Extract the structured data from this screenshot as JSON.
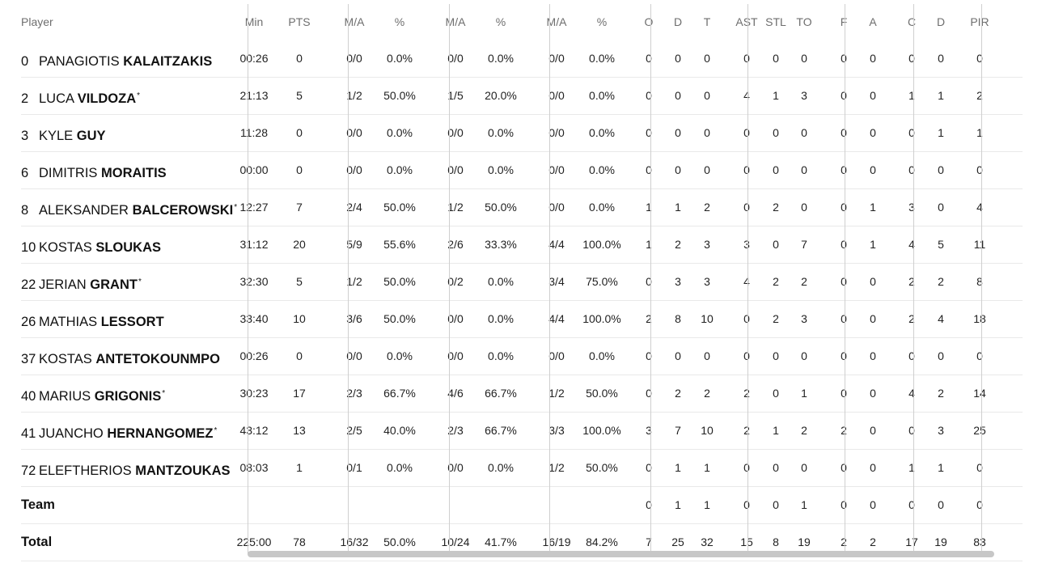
{
  "columns": {
    "player": "Player",
    "min": "Min",
    "pts": "PTS",
    "fg2_ma": "M/A",
    "fg2_pct": "%",
    "fg3_ma": "M/A",
    "fg3_pct": "%",
    "ft_ma": "M/A",
    "ft_pct": "%",
    "reb_o": "O",
    "reb_d": "D",
    "reb_t": "T",
    "ast": "AST",
    "stl": "STL",
    "to": "TO",
    "blk_f": "F",
    "blk_a": "A",
    "fouls_c": "C",
    "fouls_d": "D",
    "pir": "PIR"
  },
  "players": [
    {
      "num": "0",
      "first": "PANAGIOTIS",
      "last": "KALAITZAKIS",
      "star": "",
      "min": "00:26",
      "pts": "0",
      "fg2_ma": "0/0",
      "fg2_pct": "0.0%",
      "fg3_ma": "0/0",
      "fg3_pct": "0.0%",
      "ft_ma": "0/0",
      "ft_pct": "0.0%",
      "reb_o": "0",
      "reb_d": "0",
      "reb_t": "0",
      "ast": "0",
      "stl": "0",
      "to": "0",
      "blk_f": "0",
      "blk_a": "0",
      "fouls_c": "0",
      "fouls_d": "0",
      "pir": "0"
    },
    {
      "num": "2",
      "first": "LUCA",
      "last": "VILDOZA",
      "star": "*",
      "min": "21:13",
      "pts": "5",
      "fg2_ma": "1/2",
      "fg2_pct": "50.0%",
      "fg3_ma": "1/5",
      "fg3_pct": "20.0%",
      "ft_ma": "0/0",
      "ft_pct": "0.0%",
      "reb_o": "0",
      "reb_d": "0",
      "reb_t": "0",
      "ast": "4",
      "stl": "1",
      "to": "3",
      "blk_f": "0",
      "blk_a": "0",
      "fouls_c": "1",
      "fouls_d": "1",
      "pir": "2"
    },
    {
      "num": "3",
      "first": "KYLE",
      "last": "GUY",
      "star": "",
      "min": "11:28",
      "pts": "0",
      "fg2_ma": "0/0",
      "fg2_pct": "0.0%",
      "fg3_ma": "0/0",
      "fg3_pct": "0.0%",
      "ft_ma": "0/0",
      "ft_pct": "0.0%",
      "reb_o": "0",
      "reb_d": "0",
      "reb_t": "0",
      "ast": "0",
      "stl": "0",
      "to": "0",
      "blk_f": "0",
      "blk_a": "0",
      "fouls_c": "0",
      "fouls_d": "1",
      "pir": "1"
    },
    {
      "num": "6",
      "first": "DIMITRIS",
      "last": "MORAITIS",
      "star": "",
      "min": "00:00",
      "pts": "0",
      "fg2_ma": "0/0",
      "fg2_pct": "0.0%",
      "fg3_ma": "0/0",
      "fg3_pct": "0.0%",
      "ft_ma": "0/0",
      "ft_pct": "0.0%",
      "reb_o": "0",
      "reb_d": "0",
      "reb_t": "0",
      "ast": "0",
      "stl": "0",
      "to": "0",
      "blk_f": "0",
      "blk_a": "0",
      "fouls_c": "0",
      "fouls_d": "0",
      "pir": "0"
    },
    {
      "num": "8",
      "first": "ALEKSANDER",
      "last": "BALCEROWSKI",
      "star": "*",
      "min": "12:27",
      "pts": "7",
      "fg2_ma": "2/4",
      "fg2_pct": "50.0%",
      "fg3_ma": "1/2",
      "fg3_pct": "50.0%",
      "ft_ma": "0/0",
      "ft_pct": "0.0%",
      "reb_o": "1",
      "reb_d": "1",
      "reb_t": "2",
      "ast": "0",
      "stl": "2",
      "to": "0",
      "blk_f": "0",
      "blk_a": "1",
      "fouls_c": "3",
      "fouls_d": "0",
      "pir": "4"
    },
    {
      "num": "10",
      "first": "KOSTAS",
      "last": "SLOUKAS",
      "star": "",
      "min": "31:12",
      "pts": "20",
      "fg2_ma": "5/9",
      "fg2_pct": "55.6%",
      "fg3_ma": "2/6",
      "fg3_pct": "33.3%",
      "ft_ma": "4/4",
      "ft_pct": "100.0%",
      "reb_o": "1",
      "reb_d": "2",
      "reb_t": "3",
      "ast": "3",
      "stl": "0",
      "to": "7",
      "blk_f": "0",
      "blk_a": "1",
      "fouls_c": "4",
      "fouls_d": "5",
      "pir": "11"
    },
    {
      "num": "22",
      "first": "JERIAN",
      "last": "GRANT",
      "star": "*",
      "min": "32:30",
      "pts": "5",
      "fg2_ma": "1/2",
      "fg2_pct": "50.0%",
      "fg3_ma": "0/2",
      "fg3_pct": "0.0%",
      "ft_ma": "3/4",
      "ft_pct": "75.0%",
      "reb_o": "0",
      "reb_d": "3",
      "reb_t": "3",
      "ast": "4",
      "stl": "2",
      "to": "2",
      "blk_f": "0",
      "blk_a": "0",
      "fouls_c": "2",
      "fouls_d": "2",
      "pir": "8"
    },
    {
      "num": "26",
      "first": "MATHIAS",
      "last": "LESSORT",
      "star": "",
      "min": "33:40",
      "pts": "10",
      "fg2_ma": "3/6",
      "fg2_pct": "50.0%",
      "fg3_ma": "0/0",
      "fg3_pct": "0.0%",
      "ft_ma": "4/4",
      "ft_pct": "100.0%",
      "reb_o": "2",
      "reb_d": "8",
      "reb_t": "10",
      "ast": "0",
      "stl": "2",
      "to": "3",
      "blk_f": "0",
      "blk_a": "0",
      "fouls_c": "2",
      "fouls_d": "4",
      "pir": "18"
    },
    {
      "num": "37",
      "first": "KOSTAS",
      "last": "ANTETOKOUNMPO",
      "star": "",
      "min": "00:26",
      "pts": "0",
      "fg2_ma": "0/0",
      "fg2_pct": "0.0%",
      "fg3_ma": "0/0",
      "fg3_pct": "0.0%",
      "ft_ma": "0/0",
      "ft_pct": "0.0%",
      "reb_o": "0",
      "reb_d": "0",
      "reb_t": "0",
      "ast": "0",
      "stl": "0",
      "to": "0",
      "blk_f": "0",
      "blk_a": "0",
      "fouls_c": "0",
      "fouls_d": "0",
      "pir": "0"
    },
    {
      "num": "40",
      "first": "MARIUS",
      "last": "GRIGONIS",
      "star": "*",
      "min": "30:23",
      "pts": "17",
      "fg2_ma": "2/3",
      "fg2_pct": "66.7%",
      "fg3_ma": "4/6",
      "fg3_pct": "66.7%",
      "ft_ma": "1/2",
      "ft_pct": "50.0%",
      "reb_o": "0",
      "reb_d": "2",
      "reb_t": "2",
      "ast": "2",
      "stl": "0",
      "to": "1",
      "blk_f": "0",
      "blk_a": "0",
      "fouls_c": "4",
      "fouls_d": "2",
      "pir": "14"
    },
    {
      "num": "41",
      "first": "JUANCHO",
      "last": "HERNANGOMEZ",
      "star": "*",
      "min": "43:12",
      "pts": "13",
      "fg2_ma": "2/5",
      "fg2_pct": "40.0%",
      "fg3_ma": "2/3",
      "fg3_pct": "66.7%",
      "ft_ma": "3/3",
      "ft_pct": "100.0%",
      "reb_o": "3",
      "reb_d": "7",
      "reb_t": "10",
      "ast": "2",
      "stl": "1",
      "to": "2",
      "blk_f": "2",
      "blk_a": "0",
      "fouls_c": "0",
      "fouls_d": "3",
      "pir": "25"
    },
    {
      "num": "72",
      "first": "ELEFTHERIOS",
      "last": "MANTZOUKAS",
      "star": "",
      "min": "08:03",
      "pts": "1",
      "fg2_ma": "0/1",
      "fg2_pct": "0.0%",
      "fg3_ma": "0/0",
      "fg3_pct": "0.0%",
      "ft_ma": "1/2",
      "ft_pct": "50.0%",
      "reb_o": "0",
      "reb_d": "1",
      "reb_t": "1",
      "ast": "0",
      "stl": "0",
      "to": "0",
      "blk_f": "0",
      "blk_a": "0",
      "fouls_c": "1",
      "fouls_d": "1",
      "pir": "0"
    }
  ],
  "team": {
    "label": "Team",
    "min": "",
    "pts": "",
    "fg2_ma": "",
    "fg2_pct": "",
    "fg3_ma": "",
    "fg3_pct": "",
    "ft_ma": "",
    "ft_pct": "",
    "reb_o": "0",
    "reb_d": "1",
    "reb_t": "1",
    "ast": "0",
    "stl": "0",
    "to": "1",
    "blk_f": "0",
    "blk_a": "0",
    "fouls_c": "0",
    "fouls_d": "0",
    "pir": "0"
  },
  "total": {
    "label": "Total",
    "min": "225:00",
    "pts": "78",
    "fg2_ma": "16/32",
    "fg2_pct": "50.0%",
    "fg3_ma": "10/24",
    "fg3_pct": "41.7%",
    "ft_ma": "16/19",
    "ft_pct": "84.2%",
    "reb_o": "7",
    "reb_d": "25",
    "reb_t": "32",
    "ast": "15",
    "stl": "8",
    "to": "19",
    "blk_f": "2",
    "blk_a": "2",
    "fouls_c": "17",
    "fouls_d": "19",
    "pir": "83"
  }
}
